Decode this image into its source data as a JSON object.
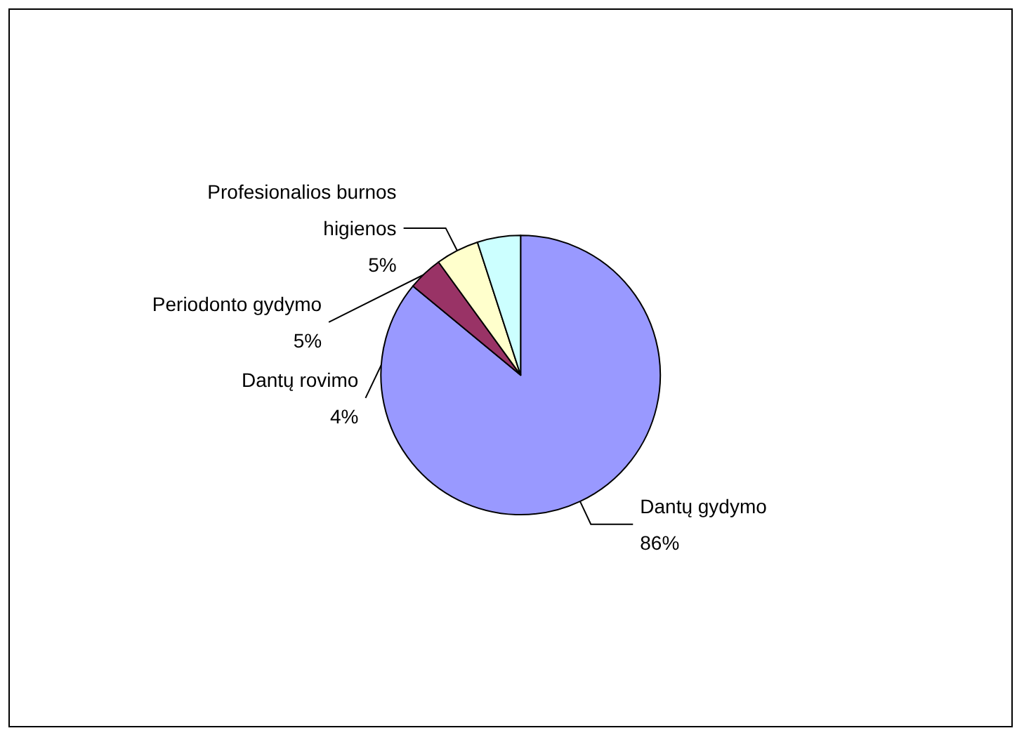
{
  "chart_data": {
    "type": "pie",
    "categories": [
      "Dantų gydymo",
      "Dantų rovimo",
      "Profesionalios burnos higienos",
      "Periodonto gydymo"
    ],
    "values": [
      86,
      4,
      5,
      5
    ],
    "value_labels": [
      "86%",
      "4%",
      "5%",
      "5%"
    ],
    "colors": [
      "#9999ff",
      "#993366",
      "#ffffcc",
      "#ccffff"
    ],
    "legend": false
  }
}
